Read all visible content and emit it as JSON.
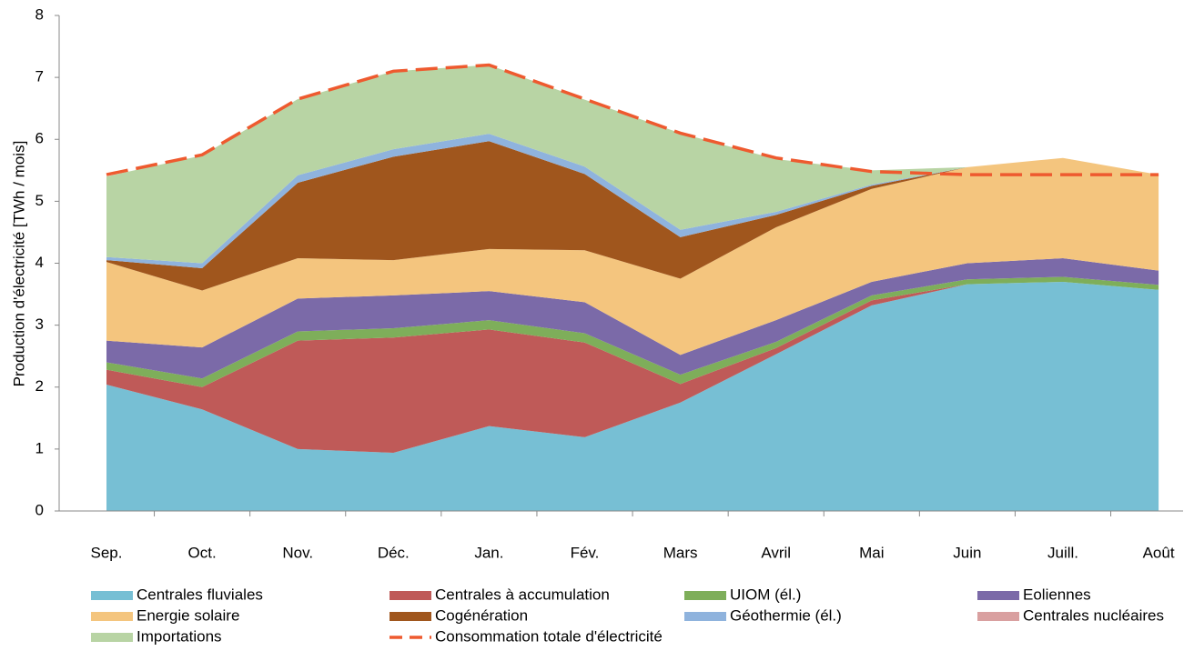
{
  "chart_data": {
    "type": "stacked_area",
    "y_label": "Production d'électricité [TWh / mois]",
    "categories": [
      "Sep.",
      "Oct.",
      "Nov.",
      "Déc.",
      "Jan.",
      "Fév.",
      "Mars",
      "Avril",
      "Mai",
      "Juin",
      "Juill.",
      "Août"
    ],
    "ylim": [
      0,
      8
    ],
    "yticks": [
      0,
      1,
      2,
      3,
      4,
      5,
      6,
      7,
      8
    ],
    "series": [
      {
        "name": "Centrales fluviales",
        "color": "#77bfd4",
        "values": [
          2.04,
          1.64,
          1.0,
          0.94,
          1.37,
          1.19,
          1.75,
          2.53,
          3.32,
          3.66,
          3.7,
          3.57
        ]
      },
      {
        "name": "Centrales à accumulation",
        "color": "#bf5a58",
        "values": [
          0.24,
          0.36,
          1.75,
          1.86,
          1.56,
          1.53,
          0.3,
          0.1,
          0.08,
          0,
          0,
          0
        ]
      },
      {
        "name": "UIOM (él.)",
        "color": "#7eae5a",
        "values": [
          0.12,
          0.14,
          0.15,
          0.15,
          0.15,
          0.15,
          0.15,
          0.1,
          0.08,
          0.08,
          0.08,
          0.08
        ]
      },
      {
        "name": "Eoliennes",
        "color": "#7b6aa8",
        "values": [
          0.35,
          0.5,
          0.53,
          0.53,
          0.47,
          0.5,
          0.32,
          0.35,
          0.22,
          0.26,
          0.3,
          0.23
        ]
      },
      {
        "name": "Energie solaire",
        "color": "#f4c57e",
        "values": [
          1.27,
          0.92,
          0.65,
          0.57,
          0.68,
          0.84,
          1.23,
          1.5,
          1.5,
          1.55,
          1.62,
          1.55
        ]
      },
      {
        "name": "Cogénération",
        "color": "#a0561d",
        "values": [
          0.03,
          0.36,
          1.22,
          1.67,
          1.74,
          1.23,
          0.67,
          0.2,
          0.05,
          0,
          0,
          0
        ]
      },
      {
        "name": "Géothermie (él.)",
        "color": "#8fb3dd",
        "values": [
          0.05,
          0.08,
          0.12,
          0.12,
          0.12,
          0.12,
          0.12,
          0.05,
          0.02,
          0,
          0,
          0
        ]
      },
      {
        "name": "Centrales nucléaires",
        "color": "#d9a0a0",
        "values": [
          0,
          0,
          0,
          0,
          0,
          0,
          0,
          0,
          0,
          0,
          0,
          0
        ]
      },
      {
        "name": "Importations",
        "color": "#b8d4a4",
        "values": [
          1.3,
          1.74,
          1.23,
          1.26,
          1.11,
          1.08,
          1.56,
          0.85,
          0.23,
          0,
          0,
          0
        ]
      }
    ],
    "line": {
      "name": "Consommation totale d'électricité",
      "color": "#ee5a2f",
      "values": [
        5.43,
        5.75,
        6.65,
        7.1,
        7.2,
        6.65,
        6.1,
        5.7,
        5.48,
        5.43,
        5.43,
        5.43
      ]
    }
  }
}
